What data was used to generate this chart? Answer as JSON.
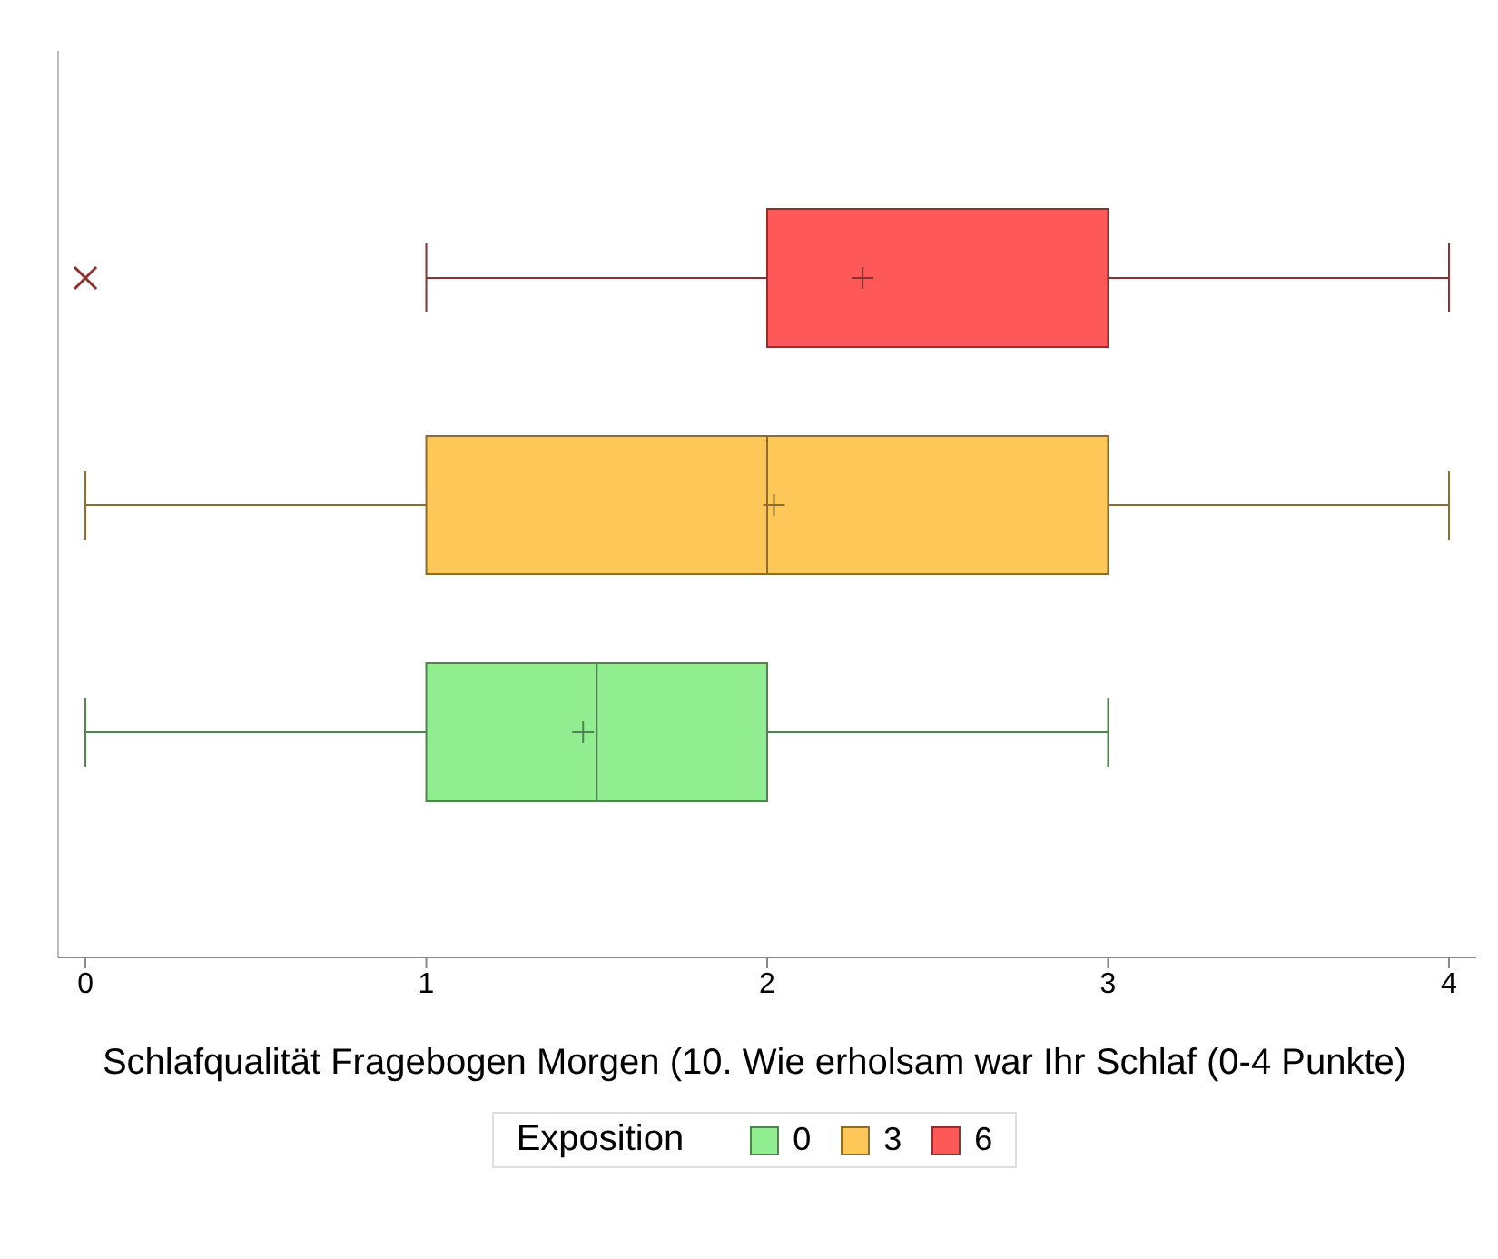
{
  "chart_data": {
    "type": "box",
    "orientation": "horizontal",
    "categories": [
      null
    ],
    "xlabel": "Schlafqualität Fragebogen Morgen (10. Wie erholsam war Ihr Schlaf (0-4 Punkte)",
    "legend_title": "Exposition",
    "legend": "bottom",
    "xlim": [
      -0.08,
      4.08
    ],
    "xticks": [
      0,
      1,
      2,
      3,
      4
    ],
    "tick_labels": "x",
    "grid": false,
    "series": [
      {
        "name": "0",
        "color": "#90ee90",
        "boxes": [
          {
            "low": 0,
            "q1": 1,
            "median": 1.5,
            "q3": 2,
            "high": 3,
            "mean": 1.46
          }
        ]
      },
      {
        "name": "3",
        "color": "#ffc658",
        "boxes": [
          {
            "low": 0,
            "q1": 1,
            "median": 2,
            "q3": 3,
            "high": 4,
            "mean": 2.02
          }
        ]
      },
      {
        "name": "6",
        "color": "#ff5858",
        "boxes": [
          {
            "low": 1,
            "q1": 2,
            "median": 2,
            "q3": 3,
            "high": 4,
            "mean": 2.28,
            "outliers": [
              0
            ]
          }
        ]
      }
    ]
  }
}
